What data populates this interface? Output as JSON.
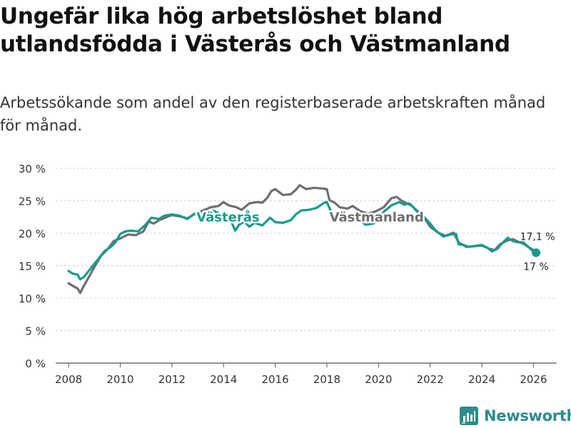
{
  "title": "Ungefär lika hög arbetslöshet bland utlandsfödda i Västerås och Västmanland",
  "subtitle": "Arbetssökande som andel av den registerbaserade arbetskraften månad för månad.",
  "brand": {
    "name": "Newsworthy",
    "color": "#2e8b8b"
  },
  "chart_data": {
    "type": "line",
    "title": "Ungefär lika hög arbetslöshet bland utlandsfödda i Västerås och Västmanland",
    "xlabel": "",
    "ylabel": "",
    "xlim": [
      2007.5,
      2026.9
    ],
    "ylim": [
      0,
      30
    ],
    "grid": true,
    "x_ticks": [
      2008,
      2010,
      2012,
      2014,
      2016,
      2018,
      2020,
      2022,
      2024,
      2026
    ],
    "y_ticks": [
      0,
      5,
      10,
      15,
      20,
      25,
      30
    ],
    "y_tick_labels": [
      "0 %",
      "5 %",
      "10 %",
      "15 %",
      "20 %",
      "25 %",
      "30 %"
    ],
    "series": [
      {
        "name": "Västmanland",
        "color": "#6e6e6e",
        "end_label": "17,1 %",
        "points": [
          [
            2008.0,
            12.3
          ],
          [
            2008.2,
            11.8
          ],
          [
            2008.35,
            11.5
          ],
          [
            2008.45,
            10.8
          ],
          [
            2008.55,
            11.6
          ],
          [
            2008.75,
            13.0
          ],
          [
            2009.0,
            14.8
          ],
          [
            2009.25,
            16.5
          ],
          [
            2009.5,
            17.5
          ],
          [
            2009.75,
            18.8
          ],
          [
            2010.0,
            19.2
          ],
          [
            2010.3,
            19.8
          ],
          [
            2010.6,
            19.7
          ],
          [
            2010.9,
            20.3
          ],
          [
            2011.1,
            21.8
          ],
          [
            2011.3,
            21.5
          ],
          [
            2011.5,
            22.0
          ],
          [
            2011.8,
            22.5
          ],
          [
            2012.0,
            22.8
          ],
          [
            2012.3,
            22.6
          ],
          [
            2012.6,
            22.3
          ],
          [
            2012.9,
            23.0
          ],
          [
            2013.2,
            23.5
          ],
          [
            2013.5,
            24.0
          ],
          [
            2013.8,
            24.2
          ],
          [
            2014.0,
            24.8
          ],
          [
            2014.2,
            24.3
          ],
          [
            2014.5,
            24.0
          ],
          [
            2014.7,
            23.6
          ],
          [
            2015.0,
            24.6
          ],
          [
            2015.3,
            24.8
          ],
          [
            2015.5,
            24.7
          ],
          [
            2015.7,
            25.5
          ],
          [
            2015.85,
            26.5
          ],
          [
            2016.0,
            26.8
          ],
          [
            2016.3,
            25.9
          ],
          [
            2016.6,
            26.0
          ],
          [
            2016.8,
            26.7
          ],
          [
            2016.95,
            27.4
          ],
          [
            2017.2,
            26.8
          ],
          [
            2017.5,
            27.0
          ],
          [
            2017.8,
            26.9
          ],
          [
            2018.0,
            26.8
          ],
          [
            2018.1,
            25.1
          ],
          [
            2018.3,
            24.7
          ],
          [
            2018.5,
            24.0
          ],
          [
            2018.8,
            23.8
          ],
          [
            2019.0,
            24.2
          ],
          [
            2019.3,
            23.4
          ],
          [
            2019.6,
            23.0
          ],
          [
            2019.9,
            23.4
          ],
          [
            2020.2,
            24.0
          ],
          [
            2020.35,
            24.7
          ],
          [
            2020.5,
            25.4
          ],
          [
            2020.7,
            25.6
          ],
          [
            2020.9,
            25.0
          ],
          [
            2021.1,
            24.6
          ],
          [
            2021.3,
            24.2
          ],
          [
            2021.5,
            23.3
          ],
          [
            2021.8,
            22.2
          ],
          [
            2022.0,
            21.0
          ],
          [
            2022.3,
            20.1
          ],
          [
            2022.6,
            19.6
          ],
          [
            2022.9,
            20.1
          ],
          [
            2023.1,
            18.6
          ],
          [
            2023.4,
            17.9
          ],
          [
            2023.7,
            18.0
          ],
          [
            2024.0,
            18.1
          ],
          [
            2024.3,
            17.6
          ],
          [
            2024.5,
            17.4
          ],
          [
            2024.7,
            18.3
          ],
          [
            2025.0,
            18.9
          ],
          [
            2025.2,
            19.1
          ],
          [
            2025.4,
            18.7
          ],
          [
            2025.6,
            18.4
          ],
          [
            2025.8,
            17.9
          ],
          [
            2026.0,
            17.4
          ],
          [
            2026.1,
            17.1
          ]
        ]
      },
      {
        "name": "Västerås",
        "color": "#169b8f",
        "end_label": "17 %",
        "points": [
          [
            2008.0,
            14.2
          ],
          [
            2008.15,
            13.8
          ],
          [
            2008.35,
            13.6
          ],
          [
            2008.45,
            12.9
          ],
          [
            2008.6,
            13.3
          ],
          [
            2008.8,
            14.3
          ],
          [
            2009.0,
            15.3
          ],
          [
            2009.2,
            16.3
          ],
          [
            2009.4,
            17.3
          ],
          [
            2009.6,
            17.8
          ],
          [
            2009.8,
            18.5
          ],
          [
            2010.0,
            19.9
          ],
          [
            2010.2,
            20.3
          ],
          [
            2010.4,
            20.4
          ],
          [
            2010.7,
            20.3
          ],
          [
            2011.0,
            21.4
          ],
          [
            2011.2,
            22.4
          ],
          [
            2011.5,
            22.2
          ],
          [
            2011.7,
            22.7
          ],
          [
            2012.0,
            22.9
          ],
          [
            2012.3,
            22.7
          ],
          [
            2012.6,
            22.2
          ],
          [
            2012.9,
            23.1
          ],
          [
            2013.1,
            23.0
          ],
          [
            2013.3,
            23.3
          ],
          [
            2013.6,
            23.5
          ],
          [
            2013.9,
            22.9
          ],
          [
            2014.1,
            22.2
          ],
          [
            2014.3,
            21.8
          ],
          [
            2014.45,
            20.4
          ],
          [
            2014.6,
            21.3
          ],
          [
            2014.8,
            21.8
          ],
          [
            2015.0,
            21.0
          ],
          [
            2015.2,
            21.6
          ],
          [
            2015.5,
            21.2
          ],
          [
            2015.8,
            22.4
          ],
          [
            2016.0,
            21.7
          ],
          [
            2016.3,
            21.6
          ],
          [
            2016.6,
            22.0
          ],
          [
            2016.8,
            22.9
          ],
          [
            2017.0,
            23.5
          ],
          [
            2017.3,
            23.6
          ],
          [
            2017.6,
            23.9
          ],
          [
            2017.9,
            24.7
          ],
          [
            2018.0,
            24.8
          ],
          [
            2018.2,
            23.0
          ],
          [
            2018.4,
            22.8
          ],
          [
            2018.6,
            22.4
          ],
          [
            2018.9,
            22.6
          ],
          [
            2019.2,
            22.3
          ],
          [
            2019.5,
            21.3
          ],
          [
            2019.8,
            21.5
          ],
          [
            2020.0,
            22.3
          ],
          [
            2020.2,
            23.3
          ],
          [
            2020.5,
            24.3
          ],
          [
            2020.8,
            24.8
          ],
          [
            2021.0,
            24.4
          ],
          [
            2021.2,
            24.6
          ],
          [
            2021.4,
            23.8
          ],
          [
            2021.7,
            22.8
          ],
          [
            2022.0,
            21.5
          ],
          [
            2022.2,
            20.5
          ],
          [
            2022.5,
            19.5
          ],
          [
            2022.8,
            19.8
          ],
          [
            2023.0,
            19.9
          ],
          [
            2023.1,
            18.3
          ],
          [
            2023.3,
            18.2
          ],
          [
            2023.5,
            17.9
          ],
          [
            2023.8,
            18.1
          ],
          [
            2024.0,
            18.2
          ],
          [
            2024.2,
            17.8
          ],
          [
            2024.4,
            17.2
          ],
          [
            2024.6,
            17.6
          ],
          [
            2024.8,
            18.5
          ],
          [
            2025.0,
            19.3
          ],
          [
            2025.2,
            18.8
          ],
          [
            2025.4,
            18.6
          ],
          [
            2025.6,
            18.6
          ],
          [
            2025.8,
            17.9
          ],
          [
            2026.0,
            17.2
          ],
          [
            2026.1,
            17.0
          ]
        ]
      }
    ]
  }
}
